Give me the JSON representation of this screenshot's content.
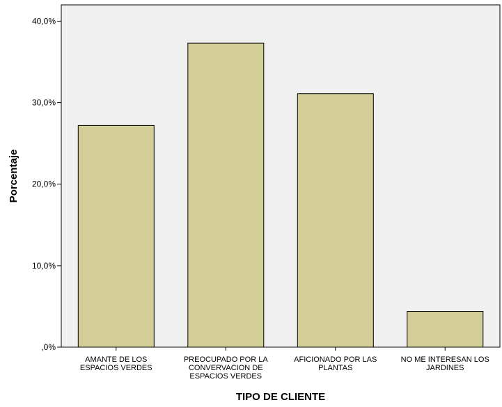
{
  "chart_data": {
    "type": "bar",
    "title": "",
    "xlabel": "TIPO DE CLIENTE",
    "ylabel": "Porcentaje",
    "categories": [
      [
        "AMANTE DE LOS",
        "ESPACIOS VERDES"
      ],
      [
        "PREOCUPADO POR LA",
        "CONVERVACION DE",
        "ESPACIOS VERDES"
      ],
      [
        "AFICIONADO POR LAS",
        "PLANTAS"
      ],
      [
        "NO ME INTERESAN LOS",
        "JARDINES"
      ]
    ],
    "values": [
      27.2,
      37.3,
      31.1,
      4.4
    ],
    "ylim": [
      0,
      42
    ],
    "yticks": [
      0,
      10,
      20,
      30,
      40
    ],
    "ytick_labels": [
      ",0%",
      "10,0%",
      "20,0%",
      "30,0%",
      "40,0%"
    ],
    "grid": false,
    "legend": "none",
    "colors": {
      "bar_fill": "#d3ce98",
      "bar_stroke": "#000000",
      "plot_background": "#f0f0f0",
      "axis": "#000000"
    }
  }
}
